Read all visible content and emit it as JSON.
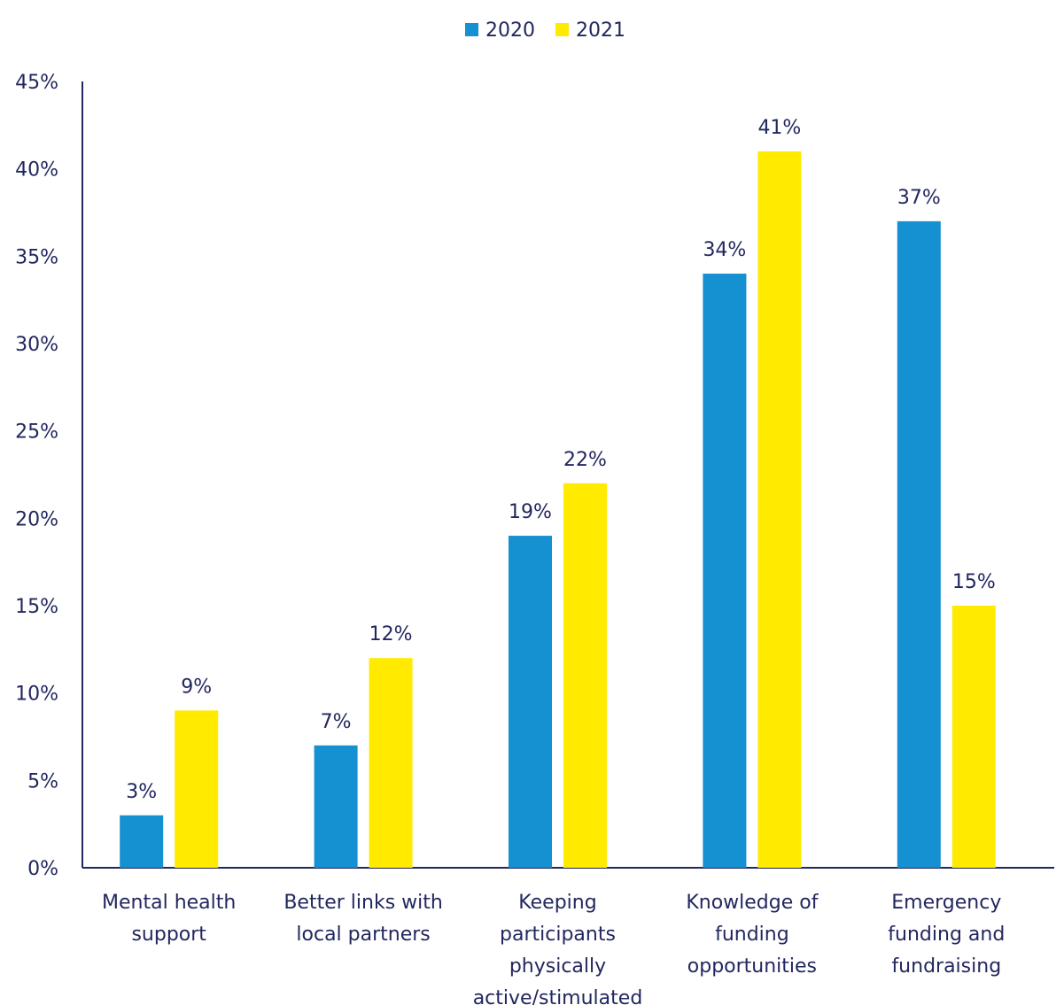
{
  "chart_data": {
    "type": "bar",
    "title": "",
    "xlabel": "",
    "ylabel": "",
    "categories": [
      [
        "Mental health",
        "support"
      ],
      [
        "Better links with",
        "local partners"
      ],
      [
        "Keeping",
        "participants",
        "physically",
        "active/stimulated"
      ],
      [
        "Knowledge of",
        "funding",
        "opportunities"
      ],
      [
        "Emergency",
        "funding and",
        "fundraising"
      ]
    ],
    "series": [
      {
        "name": "2020",
        "values": [
          3,
          7,
          19,
          34,
          37
        ],
        "labels": [
          "3%",
          "7%",
          "19%",
          "34%",
          "37%"
        ],
        "color": "#1590d0"
      },
      {
        "name": "2021",
        "values": [
          9,
          12,
          22,
          41,
          15
        ],
        "labels": [
          "9%",
          "12%",
          "22%",
          "41%",
          "15%"
        ],
        "color": "#ffea00"
      }
    ],
    "ylim": [
      0,
      45
    ],
    "yticks": [
      0,
      5,
      10,
      15,
      20,
      25,
      30,
      35,
      40,
      45
    ],
    "ytick_labels": [
      "0%",
      "5%",
      "10%",
      "15%",
      "20%",
      "25%",
      "30%",
      "35%",
      "40%",
      "45%"
    ],
    "grid": false,
    "legend": {
      "position": "top-center"
    },
    "colors": {
      "text": "#22275f",
      "axis": "#22275f"
    }
  }
}
